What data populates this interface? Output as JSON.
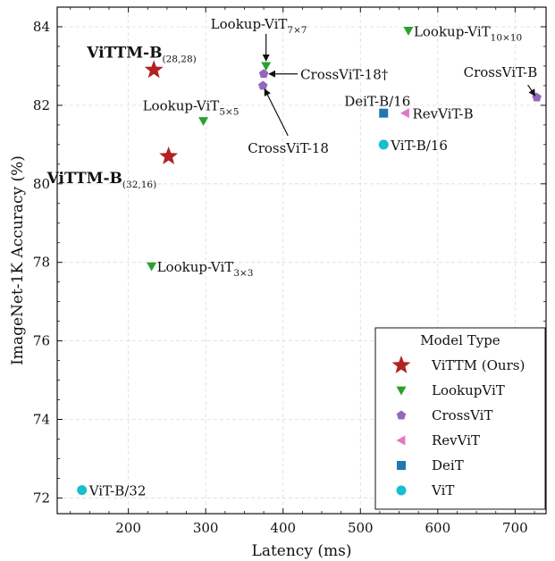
{
  "chart_data": {
    "type": "scatter",
    "xlabel": "Latency (ms)",
    "ylabel": "ImageNet-1K Accuracy (%)",
    "xlim": [
      108,
      740
    ],
    "ylim": [
      71.6,
      84.5
    ],
    "xticks": [
      200,
      300,
      400,
      500,
      600,
      700
    ],
    "yticks": [
      72,
      74,
      76,
      78,
      80,
      82,
      84
    ],
    "grid": true,
    "legend": {
      "title": "Model Type",
      "placement": "lower-right",
      "entries": [
        {
          "label": "ViTTM (Ours)",
          "marker": "star",
          "color": "#b22222"
        },
        {
          "label": "LookupViT",
          "marker": "triangle-down",
          "color": "#2ca02c"
        },
        {
          "label": "CrossViT",
          "marker": "pentagon",
          "color": "#9467bd"
        },
        {
          "label": "RevViT",
          "marker": "triangle-left",
          "color": "#e377c2"
        },
        {
          "label": "DeiT",
          "marker": "square",
          "color": "#1f77b4"
        },
        {
          "label": "ViT",
          "marker": "circle",
          "color": "#17becf"
        }
      ]
    },
    "points": [
      {
        "series": "ViTTM (Ours)",
        "x": 233,
        "y": 82.9,
        "label_main": "ViTTM-B",
        "label_sub": "(28,28)",
        "bold": true
      },
      {
        "series": "ViTTM (Ours)",
        "x": 252,
        "y": 80.7,
        "label_main": "ViTTM-B",
        "label_sub": "(32,16)",
        "bold": true
      },
      {
        "series": "LookupViT",
        "x": 378,
        "y": 83.0,
        "label_main": "Lookup-ViT",
        "label_sub": "7×7",
        "bold": false
      },
      {
        "series": "LookupViT",
        "x": 562,
        "y": 83.9,
        "label_main": "Lookup-ViT",
        "label_sub": "10×10",
        "bold": false
      },
      {
        "series": "LookupViT",
        "x": 297,
        "y": 81.6,
        "label_main": "Lookup-ViT",
        "label_sub": "5×5",
        "bold": false
      },
      {
        "series": "LookupViT",
        "x": 230,
        "y": 77.9,
        "label_main": "Lookup-ViT",
        "label_sub": "3×3",
        "bold": false
      },
      {
        "series": "CrossViT",
        "x": 375,
        "y": 82.8,
        "label_main": "CrossViT-18†",
        "label_sub": "",
        "bold": false
      },
      {
        "series": "CrossViT",
        "x": 374,
        "y": 82.5,
        "label_main": "CrossViT-18",
        "label_sub": "",
        "bold": false
      },
      {
        "series": "CrossViT",
        "x": 728,
        "y": 82.2,
        "label_main": "CrossViT-B",
        "label_sub": "",
        "bold": false
      },
      {
        "series": "RevViT",
        "x": 558,
        "y": 81.8,
        "label_main": "RevViT-B",
        "label_sub": "",
        "bold": false
      },
      {
        "series": "DeiT",
        "x": 530,
        "y": 81.8,
        "label_main": "DeiT-B/16",
        "label_sub": "",
        "bold": false
      },
      {
        "series": "ViT",
        "x": 530,
        "y": 81.0,
        "label_main": "ViT-B/16",
        "label_sub": "",
        "bold": false
      },
      {
        "series": "ViT",
        "x": 140,
        "y": 72.2,
        "label_main": "ViT-B/32",
        "label_sub": "",
        "bold": false
      }
    ]
  }
}
